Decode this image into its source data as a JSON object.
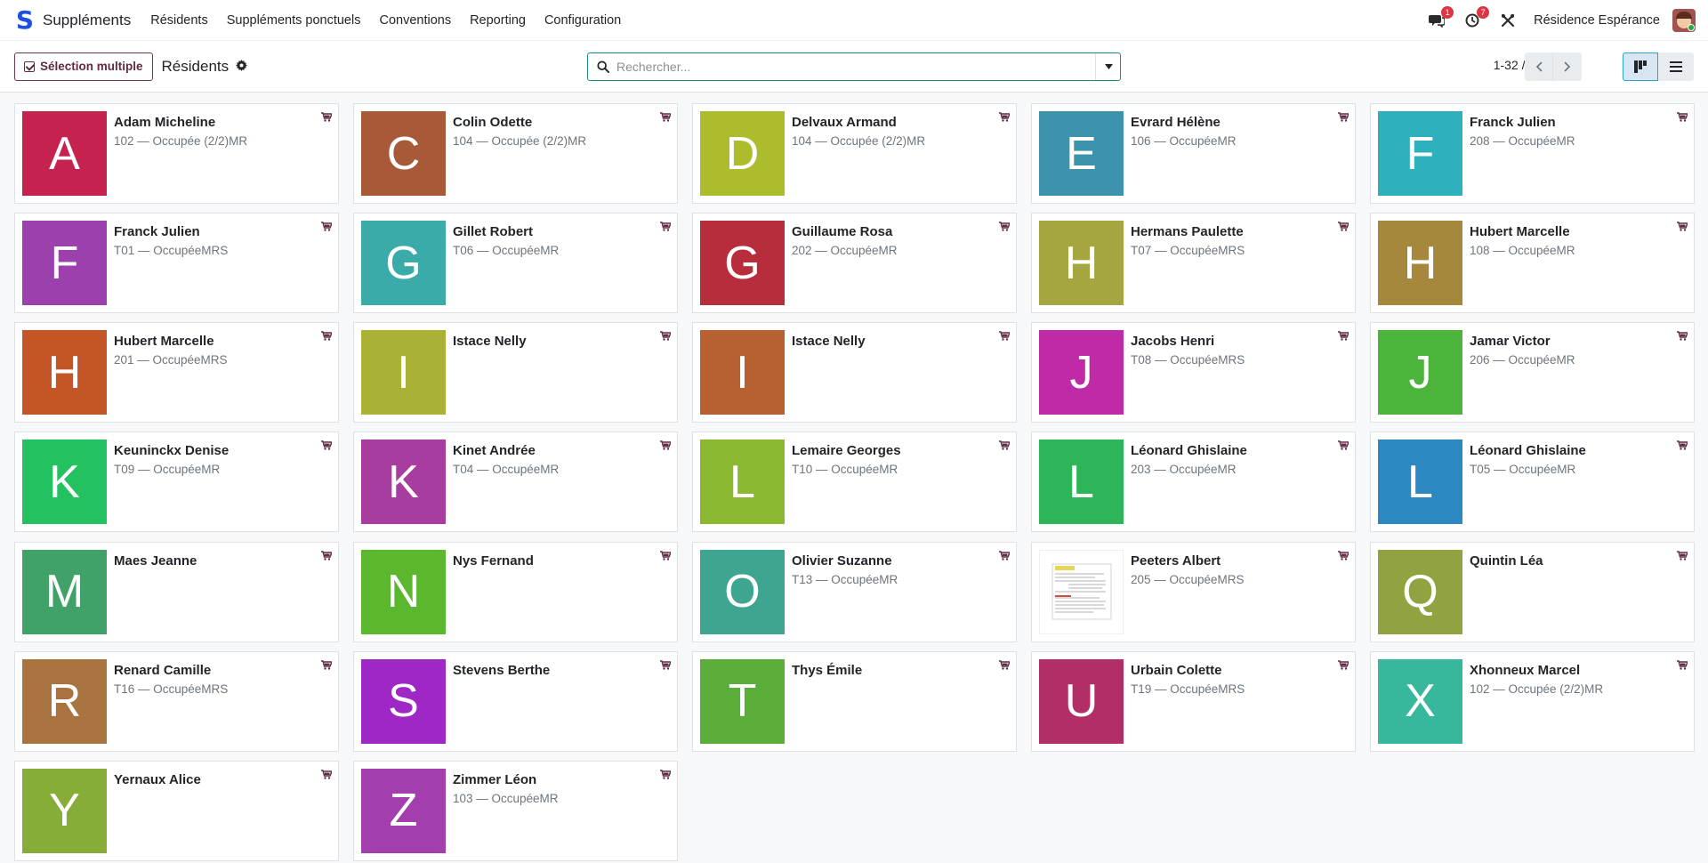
{
  "app": {
    "logo_letter": "S",
    "name": "Suppléments"
  },
  "menu": [
    "Résidents",
    "Suppléments ponctuels",
    "Conventions",
    "Reporting",
    "Configuration"
  ],
  "systray": {
    "messages_count": "1",
    "activities_count": "7",
    "company": "Résidence Espérance",
    "icons": [
      "chat-icon",
      "clock-icon",
      "tools-icon"
    ]
  },
  "control": {
    "multi_select_label": "Sélection multiple",
    "breadcrumb": "Résidents",
    "search_placeholder": "Rechercher...",
    "pager": "1-32 / 32"
  },
  "accent": "#5f2c44",
  "cards": [
    {
      "letter": "A",
      "name": "Adam Micheline",
      "sub": "102 — Occupée (2/2)MR",
      "color": "#c6224f"
    },
    {
      "letter": "C",
      "name": "Colin Odette",
      "sub": "104 — Occupée (2/2)MR",
      "color": "#a85a38"
    },
    {
      "letter": "D",
      "name": "Delvaux Armand",
      "sub": "104 — Occupée (2/2)MR",
      "color": "#acbc2c"
    },
    {
      "letter": "E",
      "name": "Evrard Hélène",
      "sub": "106 — OccupéeMR",
      "color": "#3d93ac"
    },
    {
      "letter": "F",
      "name": "Franck Julien",
      "sub": "208 — OccupéeMR",
      "color": "#2fb1bd"
    },
    {
      "letter": "F",
      "name": "Franck Julien",
      "sub": "T01 — OccupéeMRS",
      "color": "#9b40ad"
    },
    {
      "letter": "G",
      "name": "Gillet Robert",
      "sub": "T06 — OccupéeMR",
      "color": "#3aaba8"
    },
    {
      "letter": "G",
      "name": "Guillaume Rosa",
      "sub": "202 — OccupéeMR",
      "color": "#b82d3b"
    },
    {
      "letter": "H",
      "name": "Hermans Paulette",
      "sub": "T07 — OccupéeMRS",
      "color": "#a5a63f"
    },
    {
      "letter": "H",
      "name": "Hubert Marcelle",
      "sub": "108 — OccupéeMR",
      "color": "#a6883c"
    },
    {
      "letter": "H",
      "name": "Hubert Marcelle",
      "sub": "201 — OccupéeMRS",
      "color": "#c35527"
    },
    {
      "letter": "I",
      "name": "Istace Nelly",
      "sub": "",
      "color": "#aab236"
    },
    {
      "letter": "I",
      "name": "Istace Nelly",
      "sub": "",
      "color": "#b86130"
    },
    {
      "letter": "J",
      "name": "Jacobs Henri",
      "sub": "T08 — OccupéeMRS",
      "color": "#bf2aa6"
    },
    {
      "letter": "J",
      "name": "Jamar Victor",
      "sub": "206 — OccupéeMR",
      "color": "#4cb43a"
    },
    {
      "letter": "K",
      "name": "Keuninckx Denise",
      "sub": "T09 — OccupéeMR",
      "color": "#24c160"
    },
    {
      "letter": "K",
      "name": "Kinet Andrée",
      "sub": "T04 — OccupéeMR",
      "color": "#a93d9f"
    },
    {
      "letter": "L",
      "name": "Lemaire Georges",
      "sub": "T10 — OccupéeMR",
      "color": "#8ab930"
    },
    {
      "letter": "L",
      "name": "Léonard Ghislaine",
      "sub": "203 — OccupéeMR",
      "color": "#2eb558"
    },
    {
      "letter": "L",
      "name": "Léonard Ghislaine",
      "sub": "T05 — OccupéeMR",
      "color": "#2b88c0"
    },
    {
      "letter": "M",
      "name": "Maes Jeanne",
      "sub": "",
      "color": "#40a269"
    },
    {
      "letter": "N",
      "name": "Nys Fernand",
      "sub": "",
      "color": "#5bb82e"
    },
    {
      "letter": "O",
      "name": "Olivier Suzanne",
      "sub": "T13 — OccupéeMR",
      "color": "#3ea590"
    },
    {
      "letter": "",
      "name": "Peeters Albert",
      "sub": "205 — OccupéeMRS",
      "color": "#ffffff",
      "doc": true
    },
    {
      "letter": "Q",
      "name": "Quintin Léa",
      "sub": "",
      "color": "#8fa440"
    },
    {
      "letter": "R",
      "name": "Renard Camille",
      "sub": "T16 — OccupéeMRS",
      "color": "#a8733e"
    },
    {
      "letter": "S",
      "name": "Stevens Berthe",
      "sub": "",
      "color": "#9f27c6"
    },
    {
      "letter": "T",
      "name": "Thys Émile",
      "sub": "",
      "color": "#5aad39"
    },
    {
      "letter": "U",
      "name": "Urbain Colette",
      "sub": "T19 — OccupéeMRS",
      "color": "#b22e66"
    },
    {
      "letter": "X",
      "name": "Xhonneux Marcel",
      "sub": "102 — Occupée (2/2)MR",
      "color": "#37b79c"
    },
    {
      "letter": "Y",
      "name": "Yernaux Alice",
      "sub": "",
      "color": "#86ad37"
    },
    {
      "letter": "Z",
      "name": "Zimmer Léon",
      "sub": "103 — OccupéeMR",
      "color": "#a33fac"
    }
  ]
}
